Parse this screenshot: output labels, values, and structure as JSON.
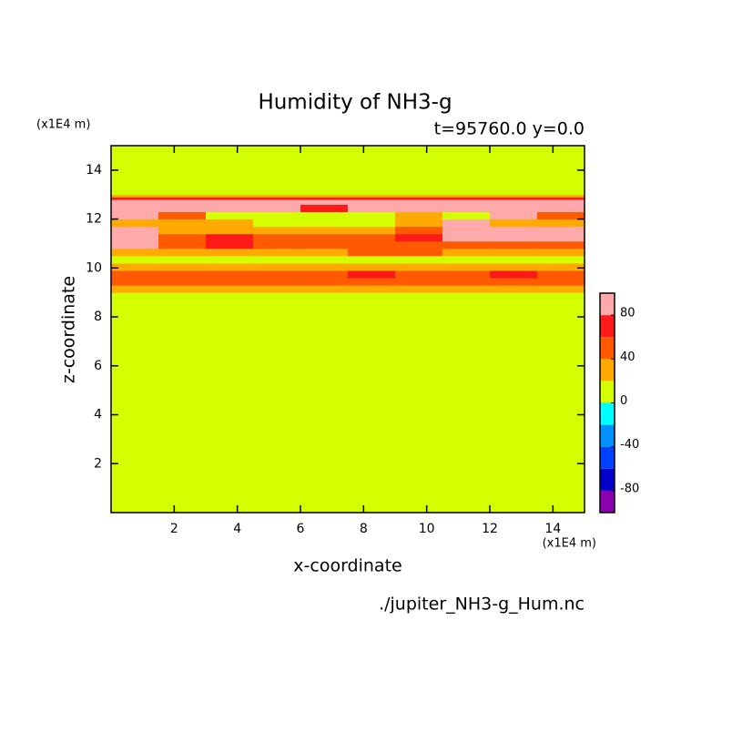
{
  "chart_data": {
    "type": "contour",
    "title": "Humidity of NH3-g",
    "subtitle": "t=95760.0 y=0.0",
    "x_label": "x-coordinate",
    "y_label": "z-coordinate",
    "x_unit": "(x1E4 m)",
    "y_unit": "(x1E4 m)",
    "source": "./jupiter_NH3-g_Hum.nc",
    "xlim": [
      0,
      15
    ],
    "ylim": [
      0,
      15
    ],
    "xticks": [
      2,
      4,
      6,
      8,
      10,
      12,
      14
    ],
    "yticks": [
      2,
      4,
      6,
      8,
      10,
      12,
      14
    ],
    "x_edges": [
      0,
      1.5,
      3,
      4.5,
      6,
      7.5,
      9,
      10.5,
      12,
      13.5,
      15
    ],
    "z_edges": [
      0,
      9,
      9.3,
      9.6,
      9.9,
      10.2,
      10.5,
      10.8,
      11.1,
      11.4,
      11.7,
      12,
      12.3,
      12.6,
      12.8,
      12.9,
      13,
      15
    ],
    "values": [
      [
        10,
        10,
        10,
        10,
        10,
        10,
        10,
        10,
        10,
        10
      ],
      [
        30,
        30,
        30,
        30,
        30,
        30,
        30,
        30,
        30,
        30
      ],
      [
        50,
        50,
        50,
        50,
        50,
        50,
        50,
        50,
        50,
        50
      ],
      [
        50,
        50,
        50,
        50,
        50,
        65,
        50,
        50,
        65,
        50
      ],
      [
        30,
        30,
        30,
        30,
        30,
        30,
        30,
        30,
        30,
        30
      ],
      [
        10,
        10,
        10,
        10,
        10,
        10,
        10,
        10,
        10,
        10
      ],
      [
        30,
        30,
        30,
        30,
        30,
        50,
        50,
        30,
        30,
        30
      ],
      [
        90,
        50,
        65,
        50,
        50,
        50,
        50,
        50,
        50,
        50
      ],
      [
        90,
        50,
        65,
        50,
        50,
        50,
        65,
        90,
        90,
        90
      ],
      [
        90,
        30,
        30,
        30,
        30,
        30,
        50,
        90,
        90,
        90
      ],
      [
        30,
        30,
        30,
        10,
        10,
        10,
        30,
        90,
        30,
        30
      ],
      [
        90,
        50,
        10,
        10,
        10,
        10,
        30,
        10,
        90,
        50
      ],
      [
        90,
        90,
        90,
        90,
        70,
        90,
        90,
        90,
        90,
        90
      ],
      [
        90,
        90,
        90,
        90,
        90,
        90,
        90,
        90,
        90,
        90
      ],
      [
        65,
        65,
        65,
        65,
        65,
        65,
        65,
        65,
        65,
        65
      ],
      [
        30,
        30,
        30,
        30,
        30,
        30,
        30,
        30,
        30,
        30
      ],
      [
        10,
        10,
        10,
        10,
        10,
        10,
        10,
        10,
        10,
        10
      ]
    ],
    "levels": [
      -100,
      -80,
      -60,
      -40,
      -20,
      0,
      20,
      40,
      60,
      80,
      100
    ],
    "colors": [
      "#8a00b0",
      "#0000c8",
      "#0040ff",
      "#0090ff",
      "#00ffff",
      "#d4ff00",
      "#ffaa00",
      "#ff5a00",
      "#ff1a1a",
      "#ffaaaa"
    ],
    "colorbar_ticks": [
      -80,
      -40,
      0,
      40,
      80
    ]
  }
}
